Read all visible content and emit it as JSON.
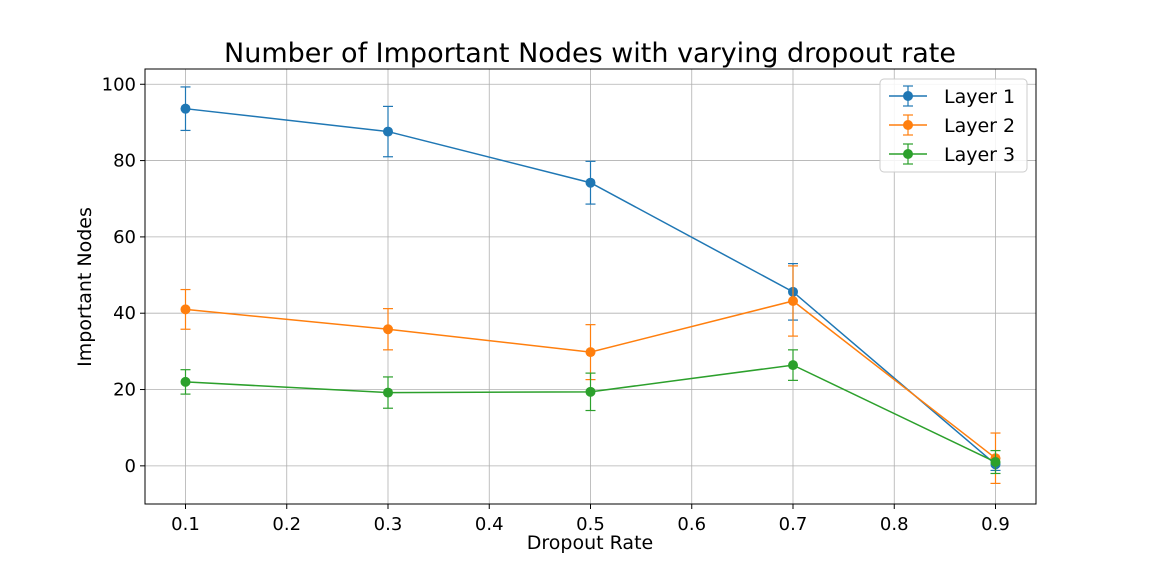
{
  "chart_data": {
    "type": "line",
    "title": "Number of Important Nodes with varying dropout rate",
    "xlabel": "Dropout Rate",
    "ylabel": "Important Nodes",
    "x": [
      0.1,
      0.3,
      0.5,
      0.7,
      0.9
    ],
    "xlim": [
      0.06,
      0.94
    ],
    "ylim": [
      -10,
      104
    ],
    "xticks": [
      "0.1",
      "0.2",
      "0.3",
      "0.4",
      "0.5",
      "0.6",
      "0.7",
      "0.8",
      "0.9"
    ],
    "yticks": [
      "0",
      "20",
      "40",
      "60",
      "80",
      "100"
    ],
    "grid": true,
    "legend_position": "top-right",
    "series": [
      {
        "name": "Layer 1",
        "color": "#1f77b4",
        "values": [
          93.6,
          87.6,
          74.2,
          45.6,
          0.4
        ],
        "errors": [
          5.7,
          6.6,
          5.6,
          7.4,
          1.6
        ]
      },
      {
        "name": "Layer 2",
        "color": "#ff7f0e",
        "values": [
          41.0,
          35.8,
          29.8,
          43.2,
          2.0
        ],
        "errors": [
          5.2,
          5.4,
          7.2,
          9.2,
          6.6
        ]
      },
      {
        "name": "Layer 3",
        "color": "#2ca02c",
        "values": [
          22.0,
          19.2,
          19.4,
          26.4,
          1.0
        ],
        "errors": [
          3.2,
          4.1,
          4.9,
          4.0,
          3.0
        ]
      }
    ]
  }
}
